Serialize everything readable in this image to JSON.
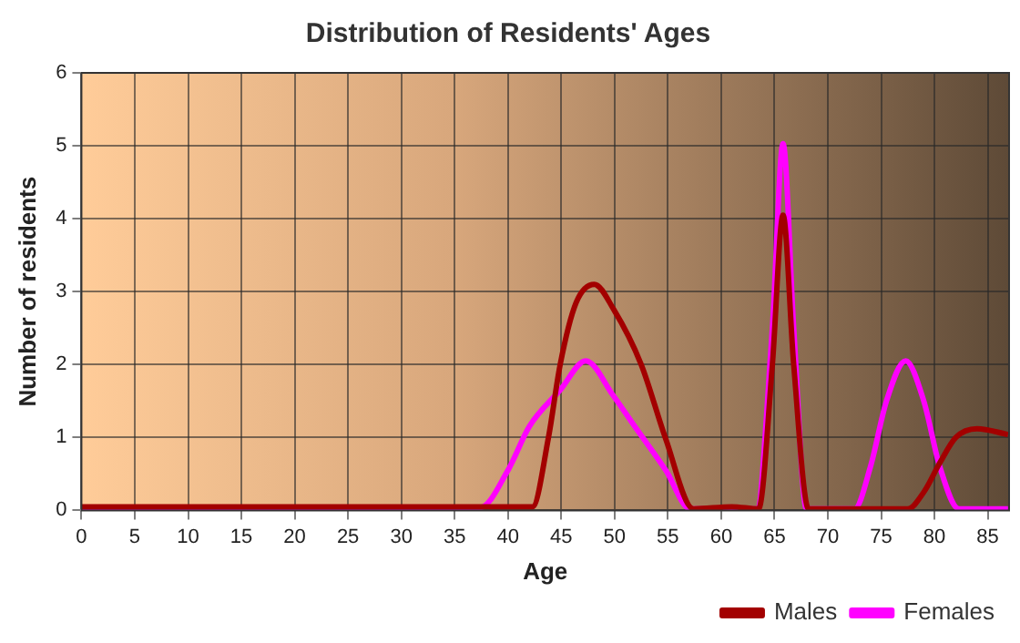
{
  "chart_data": {
    "type": "line",
    "title": "Distribution of Residents' Ages",
    "xlabel": "Age",
    "ylabel": "Number of residents",
    "xlim": [
      0,
      87
    ],
    "xticks": [
      0,
      5,
      10,
      15,
      20,
      25,
      30,
      35,
      40,
      45,
      50,
      55,
      60,
      65,
      70,
      75,
      80,
      85
    ],
    "ylim": [
      0,
      6
    ],
    "yticks": [
      0,
      1,
      2,
      3,
      4,
      5,
      6
    ],
    "grid": true,
    "legend": "bottom right",
    "marker": "none",
    "line_style": "solid",
    "series": [
      {
        "name": "Males",
        "color": "#a30000",
        "x": [
          0,
          42.3,
          43.8,
          44.9,
          46.4,
          48.1,
          49.9,
          52.5,
          54.8,
          57.4,
          61,
          63.5,
          64.8,
          65.8,
          66.8,
          68.2,
          77.5,
          79,
          80.5,
          82,
          84,
          86.9
        ],
        "values": [
          0.05,
          0.05,
          1.0,
          2.0,
          2.85,
          3.1,
          2.76,
          2.0,
          0.98,
          0.02,
          0.05,
          0.02,
          2.0,
          4.05,
          2.0,
          0.02,
          0.02,
          0.25,
          0.65,
          1.0,
          1.12,
          1.04
        ]
      },
      {
        "name": "Females",
        "color": "#ff00ff",
        "x": [
          0,
          37.4,
          40,
          42,
          44.9,
          47.3,
          49.9,
          51.9,
          54.8,
          57.1,
          63.3,
          64.8,
          65.8,
          66.8,
          68,
          72.5,
          74,
          75.5,
          77.3,
          79,
          80.5,
          82.3,
          86.9
        ],
        "values": [
          0.02,
          0.04,
          0.55,
          1.15,
          1.65,
          2.05,
          1.57,
          1.15,
          0.55,
          0.02,
          0.02,
          2.5,
          5.03,
          2.5,
          0.02,
          0.02,
          0.6,
          1.5,
          2.05,
          1.5,
          0.6,
          0.02,
          0.02
        ]
      }
    ]
  }
}
